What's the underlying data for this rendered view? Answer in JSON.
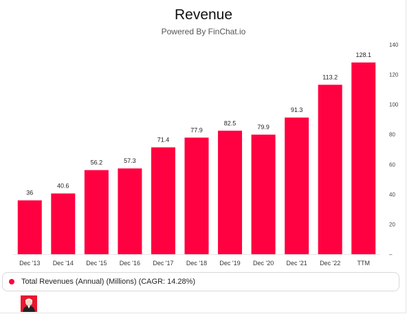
{
  "header": {
    "title": "Revenue",
    "subtitle": "Powered By FinChat.io"
  },
  "legend": {
    "label": "Total Revenues (Annual) (Millions) (CAGR: 14.28%)",
    "color": "#ff0040"
  },
  "avatar": {
    "icon": "person-avatar-icon",
    "color": "#e8172f"
  },
  "chart_data": {
    "type": "bar",
    "title": "Revenue",
    "subtitle": "Powered By FinChat.io",
    "categories": [
      "Dec '13",
      "Dec '14",
      "Dec '15",
      "Dec '16",
      "Dec '17",
      "Dec '18",
      "Dec '19",
      "Dec '20",
      "Dec '21",
      "Dec '22",
      "TTM"
    ],
    "series": [
      {
        "name": "Total Revenues (Annual) (Millions) (CAGR: 14.28%)",
        "values": [
          36,
          40.6,
          56.2,
          57.3,
          71.4,
          77.9,
          82.5,
          79.9,
          91.3,
          113.2,
          128.1
        ],
        "data_labels": [
          "36",
          "40.6",
          "56.2",
          "57.3",
          "71.4",
          "77.9",
          "82.5",
          "79.9",
          "91.3",
          "113.2",
          "128.1"
        ],
        "color": "#ff0040"
      }
    ],
    "y_axis": {
      "position": "right",
      "ylim": [
        0,
        140
      ],
      "ticks": [
        0,
        20,
        40,
        60,
        80,
        100,
        120,
        140
      ],
      "tick_labels": [
        "–",
        "20",
        "40",
        "60",
        "80",
        "100",
        "120",
        "140"
      ]
    },
    "xlabel": "",
    "ylabel": "",
    "grid": false,
    "legend_placement": "bottom"
  }
}
